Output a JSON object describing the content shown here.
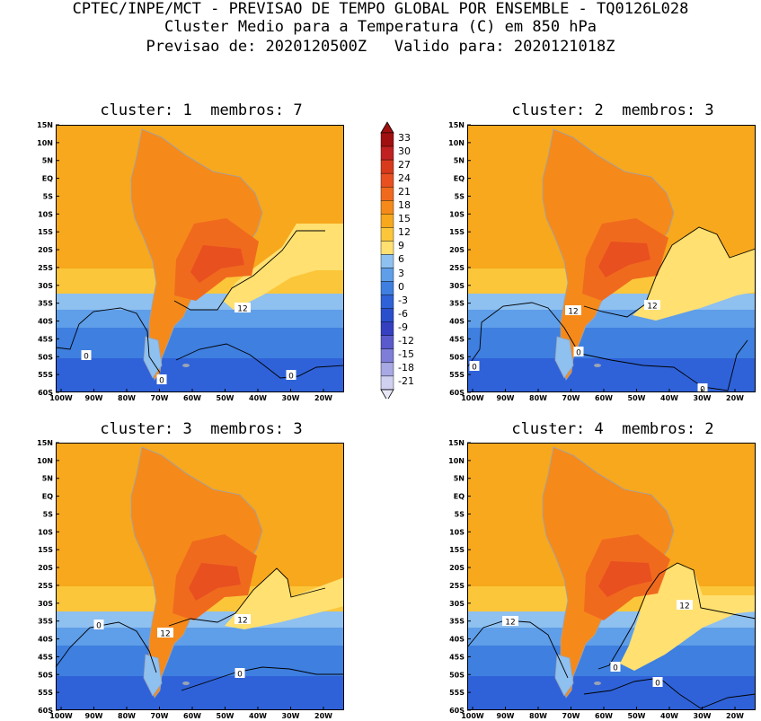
{
  "header": {
    "line1": "CPTEC/INPE/MCT - PREVISAO DE TEMPO GLOBAL POR ENSEMBLE - TQ0126L028",
    "line2": "Cluster Medio para a Temperatura (C) em 850 hPa",
    "line3": "Previsao de: 2020120500Z   Valido para: 2020121018Z"
  },
  "panels": [
    {
      "title": "cluster: 1  membros: 7",
      "contour_labels": [
        "12",
        "0",
        "0",
        "0"
      ]
    },
    {
      "title": "cluster: 2  membros: 3",
      "contour_labels": [
        "12",
        "12",
        "0",
        "0",
        "0"
      ]
    },
    {
      "title": "cluster: 3  membros: 3",
      "contour_labels": [
        "12",
        "12",
        "0",
        "0"
      ]
    },
    {
      "title": "cluster: 4  membros: 2",
      "contour_labels": [
        "12",
        "12",
        "0",
        "0"
      ]
    }
  ],
  "axes": {
    "lat_labels": [
      "15N",
      "10N",
      "5N",
      "EQ",
      "5S",
      "10S",
      "15S",
      "20S",
      "25S",
      "30S",
      "35S",
      "40S",
      "45S",
      "50S",
      "55S",
      "60S"
    ],
    "lon_labels": [
      "100W",
      "90W",
      "80W",
      "70W",
      "60W",
      "50W",
      "40W",
      "30W",
      "20W"
    ]
  },
  "colorbar": {
    "labels": [
      "33",
      "30",
      "27",
      "24",
      "21",
      "18",
      "15",
      "12",
      "9",
      "6",
      "3",
      "0",
      "-3",
      "-6",
      "-9",
      "-12",
      "-15",
      "-18",
      "-21"
    ],
    "colors": [
      "#a01010",
      "#c02020",
      "#d83a1c",
      "#e85020",
      "#f06a1e",
      "#f58a1a",
      "#f7a81c",
      "#fbc63a",
      "#ffe070",
      "#8ec0f0",
      "#5f9ee8",
      "#3e7fe0",
      "#2f62d8",
      "#2a4fcc",
      "#3440c0",
      "#5a5acc",
      "#7e7ed8",
      "#a8a8e4",
      "#d0d0f0"
    ]
  },
  "icons": {
    "colorbar_top": "triangle-up-icon",
    "colorbar_bottom": "triangle-down-icon"
  }
}
